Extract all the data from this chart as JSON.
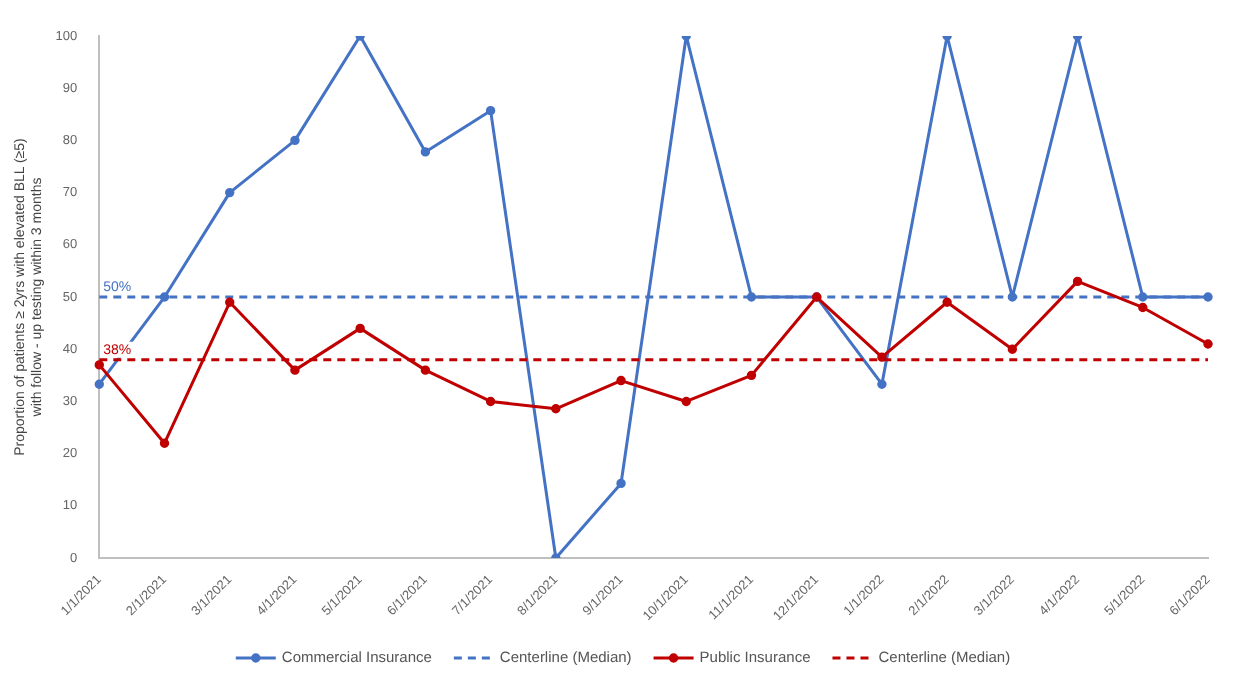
{
  "chart_data": {
    "type": "line",
    "ylabel": "Proportion of patients ≥ 2yrs with elevated BLL (≥5)\nwith follow - up testing within 3 months",
    "categories": [
      "1/1/2021",
      "2/1/2021",
      "3/1/2021",
      "4/1/2021",
      "5/1/2021",
      "6/1/2021",
      "7/1/2021",
      "8/1/2021",
      "9/1/2021",
      "10/1/2021",
      "11/1/2021",
      "12/1/2021",
      "1/1/2022",
      "2/1/2022",
      "3/1/2022",
      "4/1/2022",
      "5/1/2022",
      "6/1/2022"
    ],
    "series": [
      {
        "name": "Commercial Insurance",
        "color": "#4472c4",
        "marker": "circle",
        "line_style": "solid",
        "values": [
          33.3,
          50,
          70,
          80,
          100,
          77.8,
          85.7,
          0,
          14.3,
          100,
          50,
          50,
          33.3,
          100,
          50,
          100,
          50,
          50
        ]
      },
      {
        "name": "Centerline (Median)",
        "color": "#4472c4",
        "marker": "none",
        "line_style": "dashed",
        "values": [
          50,
          50,
          50,
          50,
          50,
          50,
          50,
          50,
          50,
          50,
          50,
          50,
          50,
          50,
          50,
          50,
          50,
          50
        ]
      },
      {
        "name": "Public Insurance",
        "color": "#c00000",
        "marker": "circle",
        "line_style": "solid",
        "values": [
          37,
          22,
          49,
          36,
          44,
          36,
          30,
          28.6,
          34,
          30,
          35,
          50,
          38.5,
          49,
          40,
          53,
          48,
          41
        ]
      },
      {
        "name": "Centerline (Median)",
        "color": "#c00000",
        "marker": "none",
        "line_style": "dashed",
        "values": [
          38,
          38,
          38,
          38,
          38,
          38,
          38,
          38,
          38,
          38,
          38,
          38,
          38,
          38,
          38,
          38,
          38,
          38
        ]
      }
    ],
    "annotations": [
      {
        "text": "50%",
        "x": "1/1/2021",
        "y": 50
      },
      {
        "text": "38%",
        "x": "1/1/2021",
        "y": 38
      }
    ],
    "ylim": [
      0,
      100
    ],
    "yticks": [
      0,
      10,
      20,
      30,
      40,
      50,
      60,
      70,
      80,
      90,
      100
    ],
    "grid": false,
    "legend": "bottom"
  }
}
